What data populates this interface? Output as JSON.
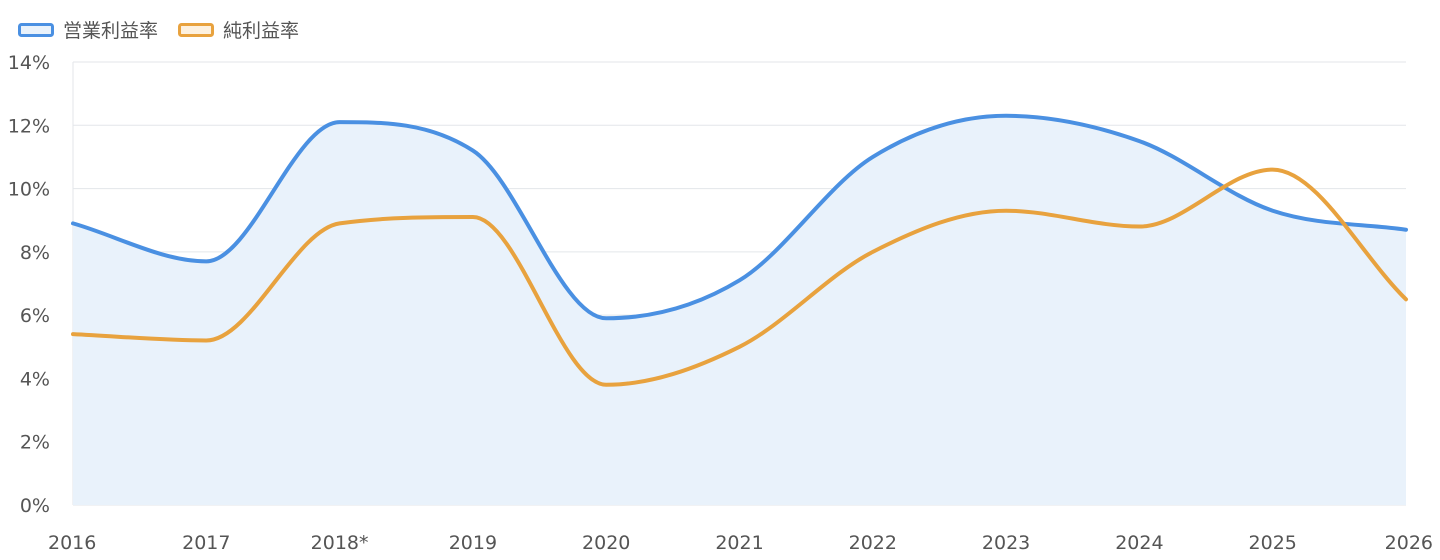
{
  "chart_data": {
    "type": "line",
    "title": "",
    "xlabel": "",
    "ylabel": "",
    "categories": [
      "2016",
      "2017",
      "2018*",
      "2019",
      "2020",
      "2021",
      "2022",
      "2023",
      "2024",
      "2025",
      "2026"
    ],
    "ylim": [
      0,
      14
    ],
    "y_ticks": [
      0,
      2,
      4,
      6,
      8,
      10,
      12,
      14
    ],
    "y_tick_suffix": "%",
    "y_tick_labels": [
      "0%",
      "2%",
      "4%",
      "6%",
      "8%",
      "10%",
      "12%",
      "14%"
    ],
    "grid": true,
    "legend_position": "top-left",
    "series": [
      {
        "name": "営業利益率",
        "values": [
          8.9,
          7.7,
          12.1,
          11.2,
          5.9,
          7.1,
          11.0,
          12.3,
          11.5,
          9.3,
          8.7
        ],
        "color": "#4a90e2",
        "fill": true,
        "fill_color": "#e9f2fb"
      },
      {
        "name": "純利益率",
        "values": [
          5.4,
          5.2,
          8.9,
          9.1,
          3.8,
          5.0,
          8.0,
          9.3,
          8.8,
          10.6,
          6.5
        ],
        "color": "#e8a23e",
        "fill": false
      }
    ]
  }
}
